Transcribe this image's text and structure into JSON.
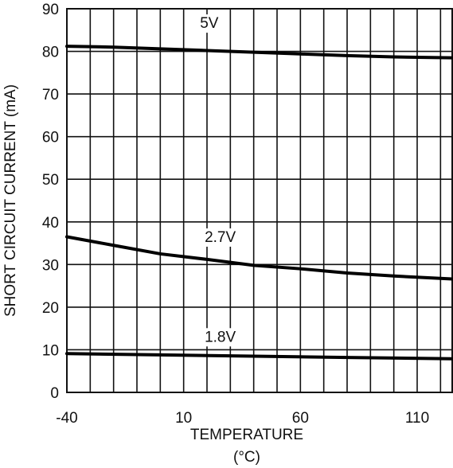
{
  "chart_data": {
    "type": "line",
    "title": "",
    "xlabel": "TEMPERATURE",
    "xlabel_unit": "(°C)",
    "ylabel": "SHORT CIRCUIT CURRENT (mA)",
    "xlim": [
      -40,
      125
    ],
    "ylim": [
      0,
      90
    ],
    "x_ticks": [
      -40,
      10,
      60,
      110
    ],
    "x_tick_labels": [
      "-40",
      "10",
      "60",
      "110"
    ],
    "x_grid_step": 10,
    "y_ticks": [
      0,
      10,
      20,
      30,
      40,
      50,
      60,
      70,
      80,
      90
    ],
    "y_tick_labels": [
      "0",
      "10",
      "20",
      "30",
      "40",
      "50",
      "60",
      "70",
      "80",
      "90"
    ],
    "grid": true,
    "legend": "none",
    "series": [
      {
        "name": "5V",
        "label_at": [
          17,
          85.5
        ],
        "x": [
          -40,
          -20,
          0,
          20,
          40,
          60,
          80,
          100,
          125
        ],
        "y": [
          81.2,
          81.0,
          80.6,
          80.2,
          79.8,
          79.4,
          79.0,
          78.7,
          78.5
        ]
      },
      {
        "name": "2.7V",
        "label_at": [
          19,
          35.3
        ],
        "x": [
          -40,
          -20,
          0,
          20,
          40,
          60,
          80,
          100,
          125
        ],
        "y": [
          36.5,
          34.5,
          32.5,
          31.2,
          29.8,
          29.0,
          28.0,
          27.3,
          26.6
        ]
      },
      {
        "name": "1.8V",
        "label_at": [
          19,
          11.9
        ],
        "x": [
          -40,
          0,
          40,
          80,
          125
        ],
        "y": [
          9.1,
          8.8,
          8.5,
          8.2,
          7.9
        ]
      }
    ]
  }
}
